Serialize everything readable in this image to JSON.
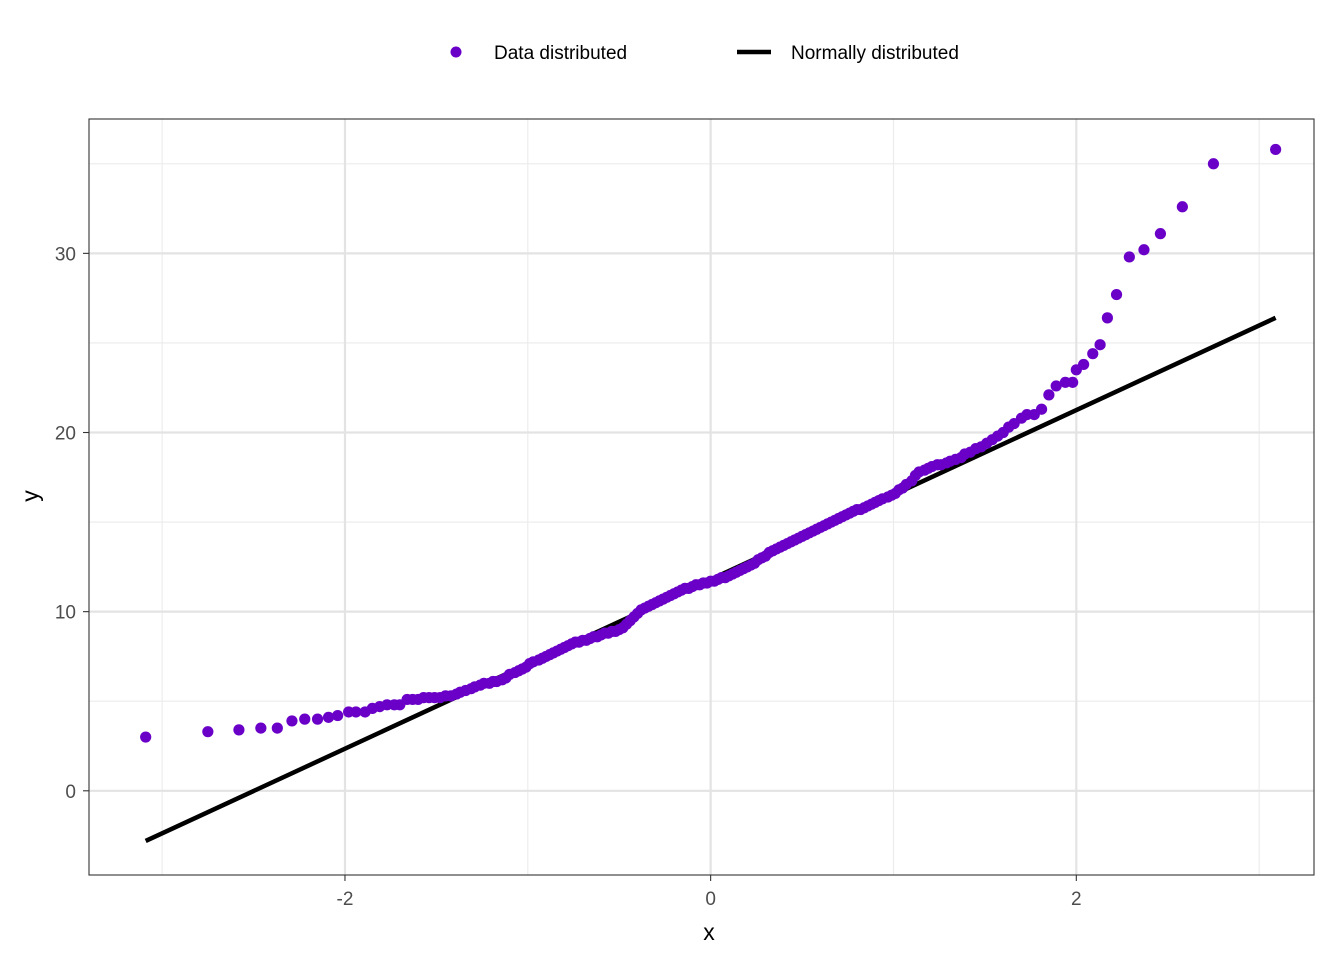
{
  "chart_data": {
    "type": "scatter",
    "title": "",
    "xlabel": "x",
    "ylabel": "y",
    "xlim": [
      -3.4,
      3.3
    ],
    "ylim": [
      -4.7,
      37.5
    ],
    "x_ticks": [
      -2,
      0,
      2
    ],
    "x_tick_labels": [
      "-2",
      "0",
      "2"
    ],
    "y_ticks": [
      0,
      10,
      20,
      30
    ],
    "y_tick_labels": [
      "0",
      "10",
      "20",
      "30"
    ],
    "grid": true,
    "legend_position": "top",
    "series": [
      {
        "name": "Data distributed",
        "type": "scatter",
        "color": "#6a00c8",
        "points": [
          [
            -3.09,
            3.0
          ],
          [
            -2.75,
            3.3
          ],
          [
            -2.58,
            3.4
          ],
          [
            -2.46,
            3.5
          ],
          [
            -2.37,
            3.5
          ],
          [
            -2.29,
            3.9
          ],
          [
            -2.22,
            4.0
          ],
          [
            -2.15,
            4.0
          ],
          [
            -2.09,
            4.1
          ],
          [
            -2.04,
            4.2
          ],
          [
            -1.98,
            4.4
          ],
          [
            -1.94,
            4.4
          ],
          [
            -1.89,
            4.4
          ],
          [
            -1.85,
            4.6
          ],
          [
            -1.81,
            4.7
          ],
          [
            -1.77,
            4.8
          ],
          [
            -1.73,
            4.8
          ],
          [
            -1.7,
            4.8
          ],
          [
            -1.66,
            5.1
          ],
          [
            -1.63,
            5.1
          ],
          [
            -1.6,
            5.1
          ],
          [
            -1.57,
            5.2
          ],
          [
            -1.54,
            5.2
          ],
          [
            -1.51,
            5.2
          ],
          [
            -1.48,
            5.2
          ],
          [
            -1.45,
            5.3
          ],
          [
            -1.42,
            5.3
          ],
          [
            -1.39,
            5.4
          ],
          [
            -1.37,
            5.5
          ],
          [
            -1.34,
            5.6
          ],
          [
            -1.31,
            5.7
          ],
          [
            -1.29,
            5.8
          ],
          [
            -1.26,
            5.9
          ],
          [
            -1.24,
            6.0
          ],
          [
            -1.21,
            6.0
          ],
          [
            -1.19,
            6.1
          ],
          [
            -1.17,
            6.1
          ],
          [
            -1.14,
            6.2
          ],
          [
            -1.12,
            6.3
          ],
          [
            -1.1,
            6.5
          ],
          [
            -1.07,
            6.6
          ],
          [
            -1.05,
            6.7
          ],
          [
            -1.03,
            6.8
          ],
          [
            -1.01,
            6.9
          ],
          [
            -0.99,
            7.1
          ],
          [
            -0.97,
            7.2
          ],
          [
            -0.94,
            7.3
          ],
          [
            -0.92,
            7.4
          ],
          [
            -0.9,
            7.5
          ],
          [
            -0.88,
            7.6
          ],
          [
            -0.86,
            7.7
          ],
          [
            -0.84,
            7.8
          ],
          [
            -0.82,
            7.9
          ],
          [
            -0.8,
            8.0
          ],
          [
            -0.78,
            8.1
          ],
          [
            -0.76,
            8.2
          ],
          [
            -0.74,
            8.3
          ],
          [
            -0.72,
            8.3
          ],
          [
            -0.7,
            8.4
          ],
          [
            -0.68,
            8.4
          ],
          [
            -0.66,
            8.5
          ],
          [
            -0.64,
            8.6
          ],
          [
            -0.62,
            8.6
          ],
          [
            -0.6,
            8.7
          ],
          [
            -0.58,
            8.8
          ],
          [
            -0.56,
            8.8
          ],
          [
            -0.54,
            8.9
          ],
          [
            -0.52,
            8.9
          ],
          [
            -0.5,
            9.0
          ],
          [
            -0.48,
            9.1
          ],
          [
            -0.46,
            9.3
          ],
          [
            -0.44,
            9.5
          ],
          [
            -0.42,
            9.7
          ],
          [
            -0.4,
            9.9
          ],
          [
            -0.38,
            10.1
          ],
          [
            -0.36,
            10.2
          ],
          [
            -0.34,
            10.3
          ],
          [
            -0.32,
            10.4
          ],
          [
            -0.3,
            10.5
          ],
          [
            -0.28,
            10.6
          ],
          [
            -0.26,
            10.7
          ],
          [
            -0.24,
            10.8
          ],
          [
            -0.22,
            10.9
          ],
          [
            -0.2,
            11.0
          ],
          [
            -0.18,
            11.1
          ],
          [
            -0.16,
            11.2
          ],
          [
            -0.14,
            11.3
          ],
          [
            -0.12,
            11.3
          ],
          [
            -0.1,
            11.4
          ],
          [
            -0.08,
            11.5
          ],
          [
            -0.06,
            11.5
          ],
          [
            -0.04,
            11.6
          ],
          [
            -0.02,
            11.6
          ],
          [
            0.0,
            11.7
          ],
          [
            0.02,
            11.7
          ],
          [
            0.04,
            11.8
          ],
          [
            0.06,
            11.9
          ],
          [
            0.08,
            11.9
          ],
          [
            0.1,
            12.0
          ],
          [
            0.12,
            12.1
          ],
          [
            0.14,
            12.2
          ],
          [
            0.16,
            12.3
          ],
          [
            0.18,
            12.4
          ],
          [
            0.2,
            12.5
          ],
          [
            0.22,
            12.6
          ],
          [
            0.24,
            12.7
          ],
          [
            0.26,
            12.9
          ],
          [
            0.28,
            13.0
          ],
          [
            0.3,
            13.1
          ],
          [
            0.32,
            13.3
          ],
          [
            0.34,
            13.4
          ],
          [
            0.36,
            13.5
          ],
          [
            0.38,
            13.6
          ],
          [
            0.4,
            13.7
          ],
          [
            0.42,
            13.8
          ],
          [
            0.44,
            13.9
          ],
          [
            0.46,
            14.0
          ],
          [
            0.48,
            14.1
          ],
          [
            0.5,
            14.2
          ],
          [
            0.52,
            14.3
          ],
          [
            0.54,
            14.4
          ],
          [
            0.56,
            14.5
          ],
          [
            0.58,
            14.6
          ],
          [
            0.6,
            14.7
          ],
          [
            0.62,
            14.8
          ],
          [
            0.64,
            14.9
          ],
          [
            0.66,
            15.0
          ],
          [
            0.68,
            15.1
          ],
          [
            0.7,
            15.2
          ],
          [
            0.72,
            15.3
          ],
          [
            0.74,
            15.4
          ],
          [
            0.76,
            15.5
          ],
          [
            0.78,
            15.6
          ],
          [
            0.8,
            15.7
          ],
          [
            0.82,
            15.7
          ],
          [
            0.84,
            15.8
          ],
          [
            0.86,
            15.9
          ],
          [
            0.88,
            16.0
          ],
          [
            0.9,
            16.1
          ],
          [
            0.92,
            16.2
          ],
          [
            0.94,
            16.3
          ],
          [
            0.97,
            16.4
          ],
          [
            0.99,
            16.5
          ],
          [
            1.01,
            16.6
          ],
          [
            1.03,
            16.8
          ],
          [
            1.05,
            16.9
          ],
          [
            1.07,
            17.1
          ],
          [
            1.1,
            17.3
          ],
          [
            1.12,
            17.6
          ],
          [
            1.14,
            17.8
          ],
          [
            1.17,
            17.9
          ],
          [
            1.19,
            18.0
          ],
          [
            1.21,
            18.1
          ],
          [
            1.24,
            18.2
          ],
          [
            1.26,
            18.2
          ],
          [
            1.29,
            18.3
          ],
          [
            1.31,
            18.4
          ],
          [
            1.34,
            18.5
          ],
          [
            1.37,
            18.6
          ],
          [
            1.39,
            18.8
          ],
          [
            1.42,
            18.9
          ],
          [
            1.45,
            19.1
          ],
          [
            1.48,
            19.2
          ],
          [
            1.51,
            19.4
          ],
          [
            1.54,
            19.6
          ],
          [
            1.57,
            19.8
          ],
          [
            1.6,
            20.0
          ],
          [
            1.63,
            20.3
          ],
          [
            1.66,
            20.5
          ],
          [
            1.7,
            20.8
          ],
          [
            1.73,
            21.0
          ],
          [
            1.77,
            21.0
          ],
          [
            1.81,
            21.3
          ],
          [
            1.85,
            22.1
          ],
          [
            1.89,
            22.6
          ],
          [
            1.94,
            22.8
          ],
          [
            1.98,
            22.8
          ],
          [
            2.0,
            23.5
          ],
          [
            2.04,
            23.8
          ],
          [
            2.09,
            24.4
          ],
          [
            2.13,
            24.9
          ],
          [
            2.17,
            26.4
          ],
          [
            2.22,
            27.7
          ],
          [
            2.29,
            29.8
          ],
          [
            2.37,
            30.2
          ],
          [
            2.46,
            31.1
          ],
          [
            2.58,
            32.6
          ],
          [
            2.75,
            35.0
          ],
          [
            3.09,
            35.8
          ]
        ]
      },
      {
        "name": "Normally distributed",
        "type": "line",
        "color": "#000000",
        "points": [
          [
            -3.09,
            -2.8
          ],
          [
            3.09,
            26.4
          ]
        ]
      }
    ]
  }
}
